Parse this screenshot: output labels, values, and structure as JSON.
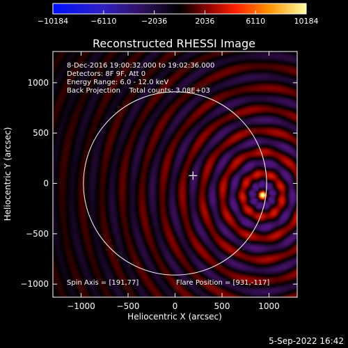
{
  "chart_data": {
    "type": "heatmap",
    "title": "Reconstructed RHESSI Image",
    "xlabel": "Heliocentric X (arcsec)",
    "ylabel": "Heliocentric Y (arcsec)",
    "xlim": [
      -1300,
      1300
    ],
    "ylim": [
      -1130,
      1310
    ],
    "x_ticks": [
      -1000,
      -500,
      0,
      500,
      1000
    ],
    "y_ticks": [
      -1000,
      -500,
      0,
      500,
      1000
    ],
    "x_tick_labels": [
      "−1000",
      "−500",
      "0",
      "500",
      "1000"
    ],
    "y_tick_labels": [
      "−1000",
      "−500",
      "0",
      "500",
      "1000"
    ],
    "colorbar": {
      "ticks": [
        -10184,
        -6110,
        -2036,
        2036,
        6110,
        10184
      ],
      "labels": [
        "−10184",
        "−6110",
        "−2036",
        "2036",
        "6110",
        "10184"
      ],
      "range": [
        -10184,
        10184
      ]
    },
    "info_lines": [
      "8-Dec-2016 19:00:32.000 to 19:02:36.000",
      "Detectors: 8F 9F, Att 0",
      "Energy Range: 6.0 - 12.0 keV",
      "Back Projection    Total counts: 3.08E+03"
    ],
    "spin_axis_text": "Spin Axis = [191,77]",
    "flare_position_text": "Flare Position = [931,-117]",
    "spin_axis": [
      191,
      77
    ],
    "flare_position": [
      931,
      -117
    ],
    "solar_disk_center": [
      0,
      0
    ],
    "solar_disk_radius": 975,
    "grid": false
  },
  "timestamp": "5-Sep-2022 16:42",
  "colors": {
    "background": "#000000",
    "foreground": "#ffffff",
    "colorbar_low": "#0000ff",
    "colorbar_mid": "#000000",
    "colorbar_high": "#ffff00"
  }
}
